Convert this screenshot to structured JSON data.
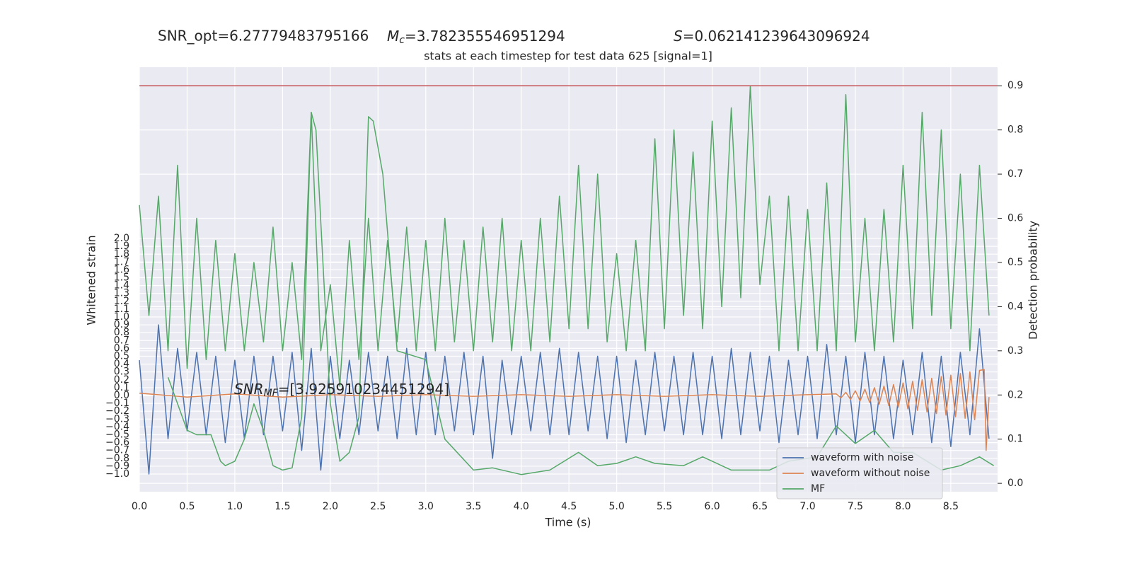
{
  "chart_data": {
    "type": "line",
    "header": {
      "snr_opt": "SNR_opt=6.27779483795166",
      "mc_symbol": "M",
      "mc_sub": "c",
      "mc_value": "=3.782355546951294",
      "s_symbol": "S",
      "s_value": "=0.062141239643096924"
    },
    "title": "stats at each timestep for test data 625 [signal=1]",
    "annotation": {
      "symbol": "SNR",
      "sub": "MF",
      "value": "=[3.925910234451294]"
    },
    "xlabel": "Time (s)",
    "ylabel": "Whitened strain",
    "y2label": "Detection probability",
    "xlim": [
      0,
      8.99
    ],
    "ylim": [
      -1.225,
      4.18
    ],
    "y2lim": [
      -0.019,
      0.942
    ],
    "xticks": [
      {
        "value": 0,
        "label": "0.0"
      },
      0.5,
      {
        "value": 1,
        "label": "1.0"
      },
      1.5,
      {
        "value": 2,
        "label": "2.0"
      },
      2.5,
      {
        "value": 3,
        "label": "3.0"
      },
      3.5,
      {
        "value": 4,
        "label": "4.0"
      },
      4.5,
      {
        "value": 5,
        "label": "5.0"
      },
      5.5,
      {
        "value": 6,
        "label": "6.0"
      },
      6.5,
      {
        "value": 7,
        "label": "7.0"
      },
      7.5,
      {
        "value": 8,
        "label": "8.0"
      },
      8.5
    ],
    "yticks": [
      {
        "value": -1,
        "label": "−1.0"
      },
      {
        "value": -0.9,
        "label": "−0.9"
      },
      {
        "value": -0.8,
        "label": "−0.8"
      },
      {
        "value": -0.7,
        "label": "−0.7"
      },
      {
        "value": -0.6,
        "label": "−0.6"
      },
      {
        "value": -0.5,
        "label": "−0.5"
      },
      {
        "value": -0.4,
        "label": "−0.4"
      },
      {
        "value": -0.3,
        "label": "−0.3"
      },
      {
        "value": -0.2,
        "label": "−0.2"
      },
      {
        "value": -0.1,
        "label": "−0.1"
      },
      {
        "value": 0,
        "label": "0.0"
      },
      0.1,
      0.2,
      0.3,
      0.4,
      0.5,
      0.6,
      0.7,
      0.8,
      0.9,
      {
        "value": 1,
        "label": "1.0"
      },
      1.1,
      1.2,
      1.3,
      1.4,
      1.5,
      1.6,
      1.7,
      1.8,
      1.9,
      {
        "value": 2,
        "label": "2.0"
      }
    ],
    "y2ticks": [
      {
        "value": 0,
        "label": "0.0"
      },
      0.1,
      0.2,
      0.3,
      0.4,
      0.5,
      0.6,
      0.7,
      0.8,
      0.9
    ],
    "grid": true,
    "legend": "lower right",
    "threshold": {
      "value": 0.9,
      "color": "#c44e52",
      "axis": "y2"
    },
    "x": [
      0.0,
      0.1,
      0.2,
      0.3,
      0.4,
      0.5,
      0.6,
      0.7,
      0.8,
      0.9,
      1.0,
      1.1,
      1.2,
      1.3,
      1.4,
      1.5,
      1.6,
      1.7,
      1.8,
      1.9,
      2.0,
      2.1,
      2.2,
      2.3,
      2.4,
      2.5,
      2.6,
      2.7,
      2.8,
      2.9,
      3.0,
      3.1,
      3.2,
      3.3,
      3.4,
      3.5,
      3.6,
      3.7,
      3.8,
      3.9,
      4.0,
      4.1,
      4.2,
      4.3,
      4.4,
      4.5,
      4.6,
      4.7,
      4.8,
      4.9,
      5.0,
      5.1,
      5.2,
      5.3,
      5.4,
      5.5,
      5.6,
      5.7,
      5.8,
      5.9,
      6.0,
      6.1,
      6.2,
      6.3,
      6.4,
      6.5,
      6.6,
      6.7,
      6.8,
      6.9,
      7.0,
      7.1,
      7.2,
      7.3,
      7.4,
      7.5,
      7.6,
      7.7,
      7.8,
      7.9,
      8.0,
      8.1,
      8.2,
      8.3,
      8.4,
      8.5,
      8.6,
      8.7,
      8.8,
      8.9
    ],
    "series": [
      {
        "name": "waveform with noise",
        "color": "#4c72b0",
        "axis": "y",
        "values": [
          0.45,
          -1.0,
          0.9,
          -0.55,
          0.6,
          -0.45,
          0.55,
          -0.5,
          0.5,
          -0.6,
          0.45,
          -0.55,
          0.5,
          -0.5,
          0.5,
          -0.45,
          0.55,
          -0.7,
          0.6,
          -0.95,
          0.5,
          -0.55,
          0.45,
          -0.5,
          0.55,
          -0.45,
          0.5,
          -0.55,
          0.6,
          -0.5,
          0.55,
          -0.5,
          0.5,
          -0.45,
          0.55,
          -0.5,
          0.5,
          -0.8,
          0.45,
          -0.5,
          0.5,
          -0.45,
          0.55,
          -0.5,
          0.6,
          -0.5,
          0.55,
          -0.45,
          0.5,
          -0.55,
          0.5,
          -0.6,
          0.45,
          -0.5,
          0.55,
          -0.45,
          0.5,
          -0.5,
          0.55,
          -0.5,
          0.5,
          -0.55,
          0.6,
          -0.5,
          0.55,
          -0.45,
          0.5,
          -0.6,
          0.45,
          -0.5,
          0.5,
          -0.55,
          0.65,
          -0.5,
          0.5,
          -0.6,
          0.55,
          -0.5,
          0.5,
          -0.55,
          0.45,
          -0.5,
          0.55,
          -0.6,
          0.5,
          -0.65,
          0.55,
          -0.5,
          0.85,
          -0.55
        ]
      },
      {
        "color": "#55a868",
        "axis": "y2",
        "values": [
          0.63,
          0.38,
          0.65,
          0.3,
          0.72,
          0.26,
          0.6,
          0.28,
          0.55,
          0.3,
          0.52,
          0.3,
          0.5,
          0.32,
          0.58,
          0.3,
          0.5,
          0.28,
          0.84,
          0.3,
          0.45,
          0.22,
          0.55,
          0.28,
          0.6,
          0.3,
          0.55,
          0.32,
          0.58,
          0.3,
          0.55,
          0.3,
          0.6,
          0.32,
          0.55,
          0.3,
          0.58,
          0.32,
          0.6,
          0.3,
          0.55,
          0.3,
          0.6,
          0.32,
          0.65,
          0.35,
          0.72,
          0.35,
          0.7,
          0.32,
          0.52,
          0.3,
          0.55,
          0.3,
          0.78,
          0.35,
          0.8,
          0.38,
          0.75,
          0.35,
          0.82,
          0.4,
          0.85,
          0.42,
          0.9,
          0.45,
          0.65,
          0.3,
          0.65,
          0.3,
          0.62,
          0.3,
          0.68,
          0.3,
          0.88,
          0.32,
          0.6,
          0.3,
          0.62,
          0.32,
          0.72,
          0.35,
          0.84,
          0.38,
          0.8,
          0.35,
          0.7,
          0.3,
          0.72,
          0.38
        ]
      },
      {
        "name": "waveform without noise",
        "color": "#dd8452",
        "axis": "y",
        "x": [
          0,
          0.5,
          1,
          1.5,
          2,
          2.5,
          3,
          3.5,
          4,
          4.5,
          5,
          5.5,
          6,
          6.5,
          7,
          7.3,
          7.35,
          7.4,
          7.45,
          7.5,
          7.55,
          7.6,
          7.65,
          7.7,
          7.75,
          7.8,
          7.85,
          7.9,
          7.95,
          8.0,
          8.05,
          8.1,
          8.15,
          8.2,
          8.25,
          8.3,
          8.35,
          8.4,
          8.45,
          8.5,
          8.55,
          8.6,
          8.65,
          8.7,
          8.75,
          8.8,
          8.85,
          8.87,
          8.9
        ],
        "values": [
          0.03,
          -0.02,
          0.02,
          -0.02,
          0.01,
          -0.01,
          0.01,
          -0.01,
          0.01,
          -0.01,
          0.01,
          -0.01,
          0.01,
          -0.01,
          0.01,
          0.02,
          -0.03,
          0.04,
          -0.05,
          0.06,
          -0.07,
          0.08,
          -0.09,
          0.1,
          -0.11,
          0.12,
          -0.13,
          0.14,
          -0.15,
          0.16,
          -0.17,
          0.18,
          -0.19,
          0.2,
          -0.21,
          0.22,
          -0.23,
          0.24,
          -0.25,
          0.26,
          -0.27,
          0.28,
          -0.29,
          0.3,
          -0.31,
          0.32,
          0.33,
          -0.7,
          -0.02
        ]
      },
      {
        "name": "MF",
        "color": "#55a868",
        "axis": "y2",
        "x": [
          0.3,
          0.5,
          0.6,
          0.75,
          0.85,
          0.9,
          1.0,
          1.1,
          1.2,
          1.3,
          1.4,
          1.5,
          1.6,
          1.7,
          1.8,
          1.85,
          2.0,
          2.1,
          2.2,
          2.3,
          2.4,
          2.45,
          2.55,
          2.7,
          3.0,
          3.2,
          3.5,
          3.7,
          4.0,
          4.3,
          4.6,
          4.8,
          5.0,
          5.2,
          5.4,
          5.7,
          5.9,
          6.2,
          6.6,
          6.8,
          7.1,
          7.3,
          7.5,
          7.7,
          7.9,
          8.1,
          8.4,
          8.6,
          8.8,
          8.95
        ],
        "values": [
          0.24,
          0.12,
          0.11,
          0.11,
          0.05,
          0.04,
          0.05,
          0.1,
          0.18,
          0.12,
          0.04,
          0.03,
          0.035,
          0.15,
          0.84,
          0.8,
          0.18,
          0.05,
          0.07,
          0.15,
          0.83,
          0.82,
          0.7,
          0.3,
          0.28,
          0.1,
          0.03,
          0.035,
          0.02,
          0.03,
          0.07,
          0.04,
          0.045,
          0.06,
          0.045,
          0.04,
          0.06,
          0.03,
          0.03,
          0.05,
          0.06,
          0.13,
          0.09,
          0.12,
          0.07,
          0.07,
          0.03,
          0.04,
          0.06,
          0.04
        ]
      }
    ]
  }
}
